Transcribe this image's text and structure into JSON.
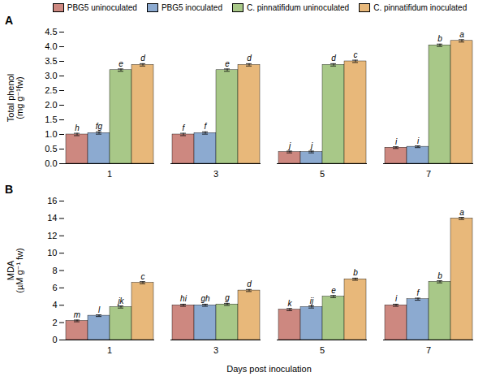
{
  "chart_data": [
    {
      "type": "bar",
      "title": "A",
      "ylabel": "Total phenol\n(mg g⁻¹fw)",
      "categories": [
        "1",
        "3",
        "5",
        "7"
      ],
      "ylim": [
        0,
        4.5
      ],
      "yticks": [
        {
          "value": 0,
          "label": "0.0"
        },
        0.5,
        {
          "value": 1.0,
          "label": "1.0"
        },
        1.5,
        {
          "value": 2.0,
          "label": "2.0"
        },
        2.5,
        {
          "value": 3.0,
          "label": "3.0"
        },
        3.5,
        {
          "value": 4.0,
          "label": "4.0"
        },
        4.5
      ],
      "grid": false,
      "legend": "top",
      "series": [
        {
          "name": "PBG5 uninoculated",
          "color": "#cd8880",
          "values": [
            1.0,
            1.0,
            0.4,
            0.55
          ],
          "errors": [
            0.04,
            0.04,
            0.03,
            0.03
          ],
          "annotations": [
            "h",
            "f",
            "j",
            "i"
          ]
        },
        {
          "name": "PBG5 inoculated",
          "color": "#8caad0",
          "values": [
            1.05,
            1.05,
            0.4,
            0.58
          ],
          "errors": [
            0.04,
            0.04,
            0.03,
            0.03
          ],
          "annotations": [
            "fg",
            "f",
            "j",
            "i"
          ]
        },
        {
          "name": "C. pinnatifidum uninoculated",
          "color": "#a8c888",
          "values": [
            3.2,
            3.2,
            3.38,
            4.05
          ],
          "errors": [
            0.04,
            0.04,
            0.04,
            0.04
          ],
          "annotations": [
            "e",
            "e",
            "d",
            "b"
          ]
        },
        {
          "name": "C. pinnatifidum inoculated",
          "color": "#e8b87a",
          "values": [
            3.38,
            3.38,
            3.5,
            4.2
          ],
          "errors": [
            0.04,
            0.04,
            0.04,
            0.04
          ],
          "annotations": [
            "d",
            "d",
            "c",
            "a"
          ]
        }
      ]
    },
    {
      "type": "bar",
      "title": "B",
      "ylabel": "MDA\n(µM g⁻¹ fw)",
      "xlabel": "Days post inoculation",
      "categories": [
        "1",
        "3",
        "5",
        "7"
      ],
      "ylim": [
        0,
        16
      ],
      "yticks": [
        0,
        2,
        4,
        6,
        8,
        10,
        12,
        14,
        16
      ],
      "grid": false,
      "series": [
        {
          "name": "PBG5 uninoculated",
          "color": "#cd8880",
          "values": [
            2.2,
            4.0,
            3.5,
            4.0
          ],
          "errors": [
            0.1,
            0.12,
            0.12,
            0.12
          ],
          "annotations": [
            "m",
            "hi",
            "k",
            "i"
          ]
        },
        {
          "name": "PBG5 inoculated",
          "color": "#8caad0",
          "values": [
            2.8,
            4.0,
            3.8,
            4.7
          ],
          "errors": [
            0.1,
            0.12,
            0.12,
            0.12
          ],
          "annotations": [
            "l",
            "gh",
            "ij",
            "f"
          ]
        },
        {
          "name": "C. pinnatifidum uninoculated",
          "color": "#a8c888",
          "values": [
            3.8,
            4.1,
            5.0,
            6.7
          ],
          "errors": [
            0.12,
            0.12,
            0.12,
            0.12
          ],
          "annotations": [
            "jk",
            "g",
            "e",
            "b"
          ]
        },
        {
          "name": "C. pinnatifidum inoculated",
          "color": "#e8b87a",
          "values": [
            6.6,
            5.7,
            7.0,
            14.0
          ],
          "errors": [
            0.12,
            0.12,
            0.12,
            0.12
          ],
          "annotations": [
            "c",
            "d",
            "b",
            "a"
          ]
        }
      ]
    }
  ]
}
